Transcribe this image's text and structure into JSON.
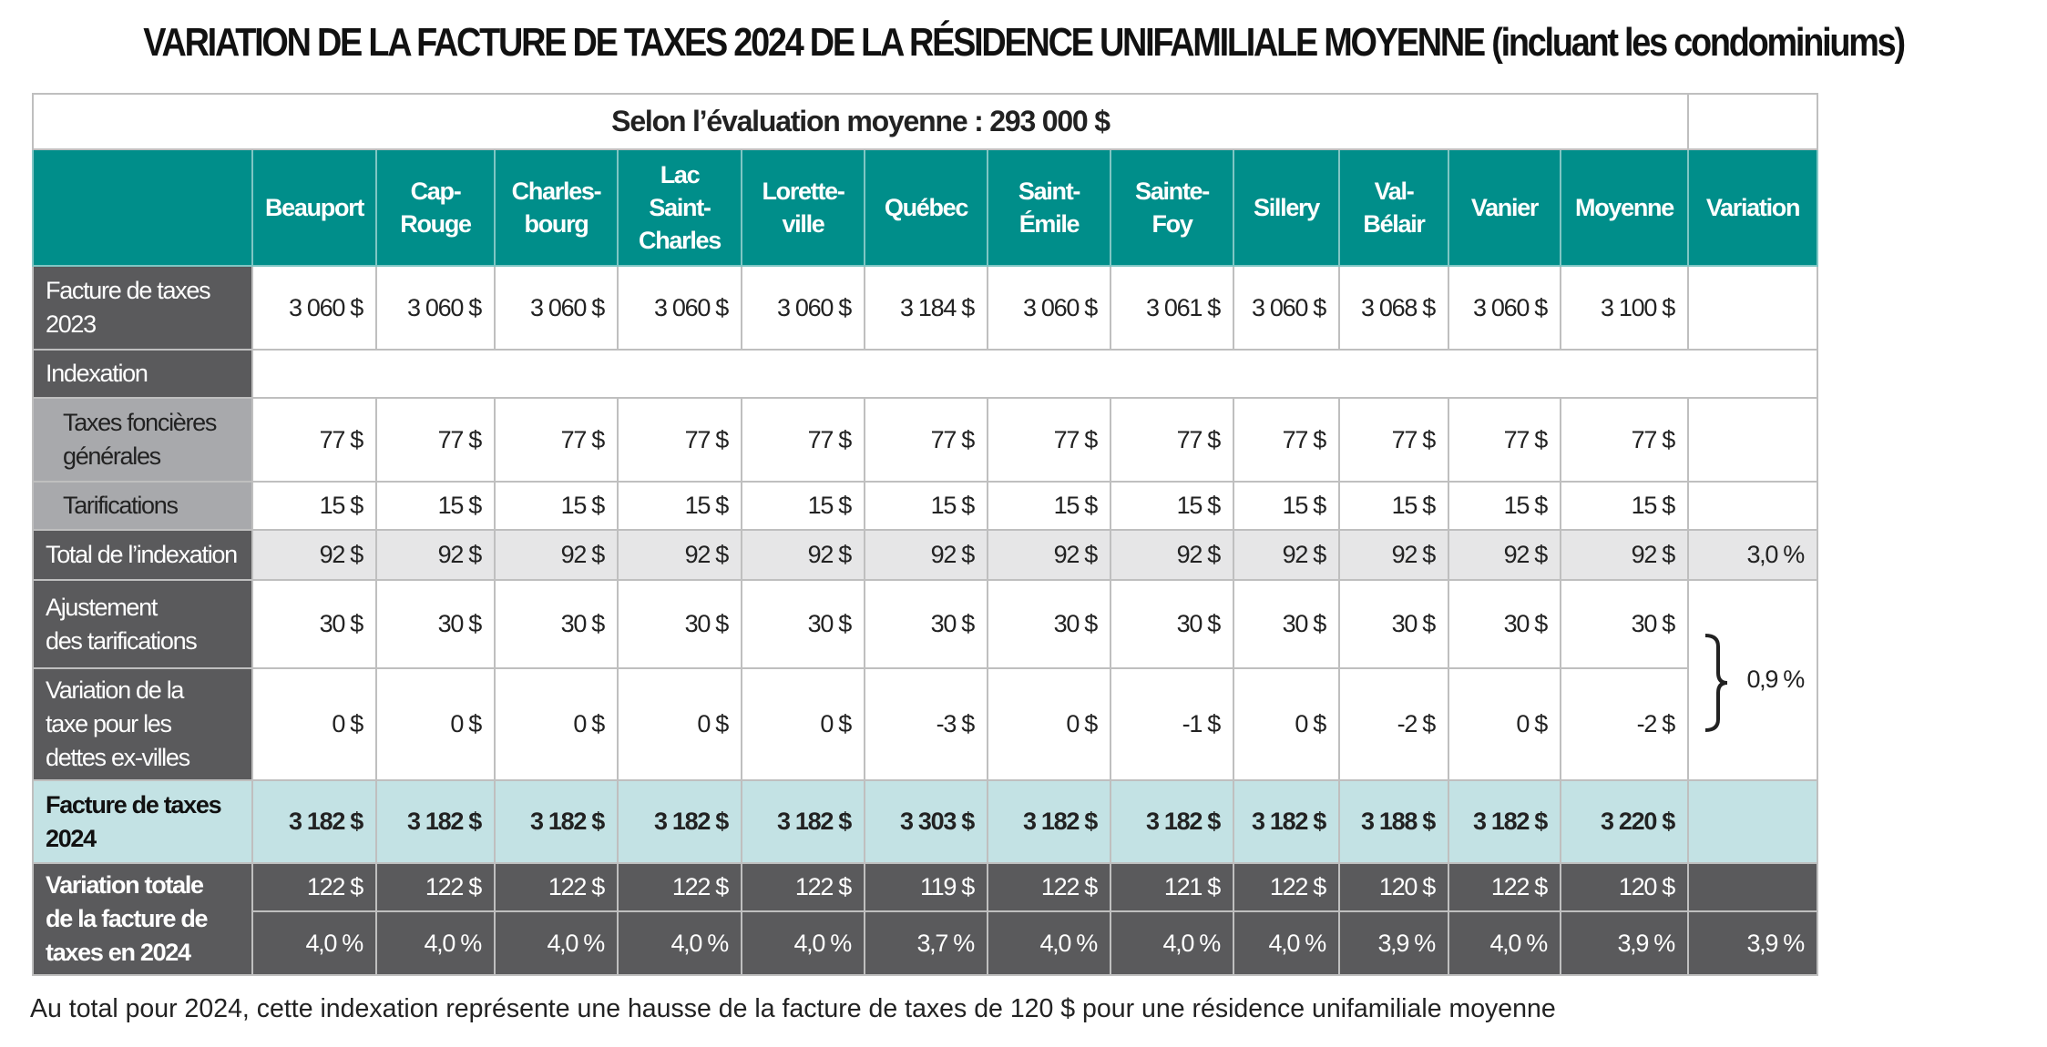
{
  "title": "VARIATION DE LA FACTURE DE TAXES 2024 DE LA RÉSIDENCE UNIFAMILIALE MOYENNE (incluant les condominiums)",
  "subtitle": "Selon l’évaluation moyenne : 293 000 $",
  "columns": [
    "Beauport",
    "Cap-\nRouge",
    "Charles-\nbourg",
    "Lac\nSaint-\nCharles",
    "Lorette-\nville",
    "Québec",
    "Saint-\nÉmile",
    "Sainte-\nFoy",
    "Sillery",
    "Val-\nBélair",
    "Vanier",
    "Moyenne",
    "Variation"
  ],
  "rows": {
    "facture_2023": {
      "label": "Facture de taxes\n2023",
      "values": [
        "3 060 $",
        "3 060 $",
        "3 060 $",
        "3 060 $",
        "3 060 $",
        "3 184 $",
        "3 060 $",
        "3 061 $",
        "3 060 $",
        "3 068 $",
        "3 060 $",
        "3 100 $"
      ],
      "variation": ""
    },
    "indexation": {
      "label": "Indexation"
    },
    "taxes_foncieres": {
      "label": "Taxes foncières\ngénérales",
      "values": [
        "77 $",
        "77 $",
        "77 $",
        "77 $",
        "77 $",
        "77 $",
        "77 $",
        "77 $",
        "77 $",
        "77 $",
        "77 $",
        "77 $"
      ],
      "variation": ""
    },
    "tarifications": {
      "label": "Tarifications",
      "values": [
        "15 $",
        "15 $",
        "15 $",
        "15 $",
        "15 $",
        "15 $",
        "15 $",
        "15 $",
        "15 $",
        "15 $",
        "15 $",
        "15 $"
      ],
      "variation": ""
    },
    "total_indexation": {
      "label": "Total de l’indexation",
      "values": [
        "92 $",
        "92 $",
        "92 $",
        "92 $",
        "92 $",
        "92 $",
        "92 $",
        "92 $",
        "92 $",
        "92 $",
        "92 $",
        "92 $"
      ],
      "variation": "3,0 %"
    },
    "ajustement": {
      "label": "Ajustement\ndes tarifications",
      "values": [
        "30 $",
        "30 $",
        "30 $",
        "30 $",
        "30 $",
        "30 $",
        "30 $",
        "30 $",
        "30 $",
        "30 $",
        "30 $",
        "30 $"
      ]
    },
    "dettes": {
      "label": "Variation de la\ntaxe pour les\ndettes ex-villes",
      "values": [
        "0 $",
        "0 $",
        "0 $",
        "0 $",
        "0 $",
        "-3 $",
        "0 $",
        "-1 $",
        "0 $",
        "-2 $",
        "0 $",
        "-2 $"
      ]
    },
    "grouped_variation": "0,9 %",
    "facture_2024": {
      "label": "Facture de taxes\n2024",
      "values": [
        "3 182 $",
        "3 182 $",
        "3 182 $",
        "3 182 $",
        "3 182 $",
        "3 303 $",
        "3 182 $",
        "3 182 $",
        "3 182 $",
        "3 188 $",
        "3 182 $",
        "3 220 $"
      ],
      "variation": ""
    },
    "variation_totale": {
      "label": "Variation totale\nde la facture de\ntaxes en 2024",
      "dollars": [
        "122 $",
        "122 $",
        "122 $",
        "122 $",
        "122 $",
        "119 $",
        "122 $",
        "121 $",
        "122 $",
        "120 $",
        "122 $",
        "120 $"
      ],
      "dollars_variation": "",
      "percent": [
        "4,0 %",
        "4,0 %",
        "4,0 %",
        "4,0 %",
        "4,0 %",
        "3,7 %",
        "4,0 %",
        "4,0 %",
        "4,0 %",
        "3,9 %",
        "4,0 %",
        "3,9 %"
      ],
      "percent_variation": "3,9 %"
    }
  },
  "footer": "Au total pour 2024, cette indexation représente une hausse de la facture de taxes de 120 $ pour une résidence unifamiliale moyenne",
  "colors": {
    "header": "#008e8a",
    "label_dark": "#5a5a5c",
    "label_sub": "#a8a9ac",
    "total_row": "#e6e6e7",
    "facture_2024_row": "#c3e2e4",
    "border": "#bfbfbf"
  },
  "icons": {
    "brace": "right-curly-brace"
  }
}
